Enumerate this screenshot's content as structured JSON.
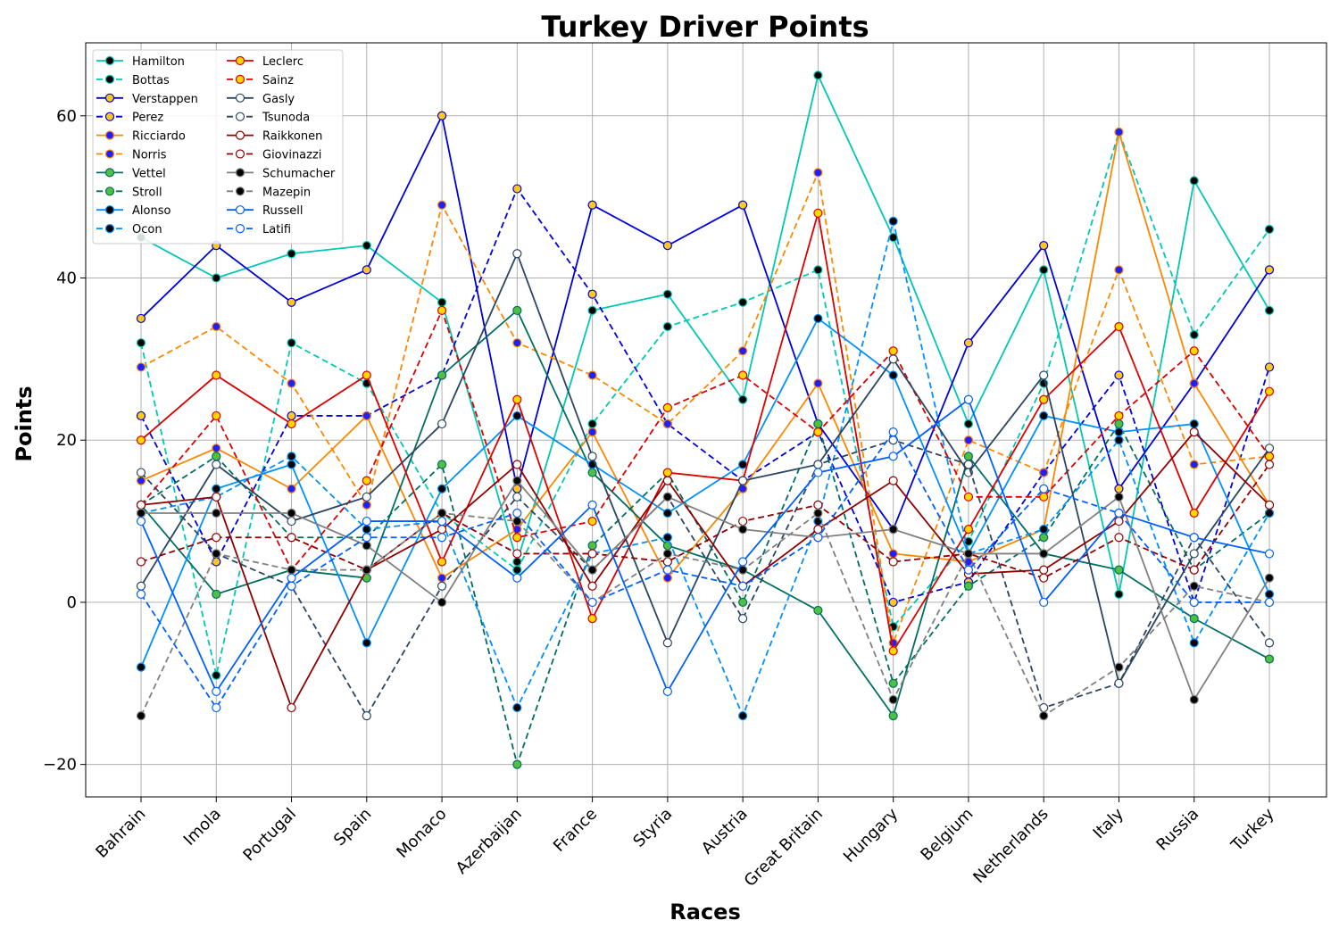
{
  "chart_data": {
    "type": "line",
    "title": "Turkey Driver Points",
    "xlabel": "Races",
    "ylabel": "Points",
    "ylim": [
      -24,
      69
    ],
    "yticks": [
      -20,
      0,
      20,
      40,
      60
    ],
    "ytick_labels": [
      "−20",
      "0",
      "20",
      "40",
      "60"
    ],
    "grid": true,
    "legend_position": "top-left",
    "categories": [
      "Bahrain",
      "Imola",
      "Portugal",
      "Spain",
      "Monaco",
      "Azerbaijan",
      "France",
      "Styria",
      "Austria",
      "Great Britain",
      "Hungary",
      "Belgium",
      "Netherlands",
      "Italy",
      "Russia",
      "Turkey"
    ],
    "series": [
      {
        "name": "Hamilton",
        "color": "#00c8b4",
        "dash": false,
        "marker_fill": "#000000",
        "values": [
          45,
          40,
          43,
          44,
          37,
          5,
          36,
          38,
          25,
          65,
          45,
          22,
          41,
          1,
          52,
          36
        ]
      },
      {
        "name": "Bottas",
        "color": "#00c8b4",
        "dash": true,
        "marker_fill": "#000000",
        "values": [
          32,
          -9,
          32,
          27,
          11,
          4,
          22,
          34,
          37,
          41,
          -3,
          7.5,
          27,
          58,
          33,
          46
        ]
      },
      {
        "name": "Verstappen",
        "color": "#0000dc",
        "dash": false,
        "marker_fill": "#ffc820",
        "values": [
          35,
          44,
          37,
          41,
          60,
          14,
          49,
          44,
          49,
          22,
          9,
          32,
          44,
          14,
          27,
          41
        ]
      },
      {
        "name": "Perez",
        "color": "#0000dc",
        "dash": true,
        "marker_fill": "#ffc820",
        "values": [
          23,
          5,
          23,
          23,
          28,
          51,
          38,
          22,
          15,
          21,
          0,
          2.5,
          16,
          28,
          0,
          29
        ]
      },
      {
        "name": "Ricciardo",
        "color": "#ff8700",
        "dash": false,
        "marker_fill": "#2020ff",
        "values": [
          15,
          19,
          14,
          23,
          3,
          9,
          21,
          3,
          14,
          27,
          6,
          5,
          9,
          58,
          27,
          12
        ]
      },
      {
        "name": "Norris",
        "color": "#ff8700",
        "dash": true,
        "marker_fill": "#2020ff",
        "values": [
          29,
          34,
          27,
          12,
          49,
          32,
          28,
          22,
          31,
          53,
          -5,
          20,
          16,
          41,
          17,
          18
        ]
      },
      {
        "name": "Vettel",
        "color": "#006f62",
        "dash": false,
        "marker_fill": "#50c040",
        "values": [
          12,
          1,
          4,
          3,
          28,
          36,
          16,
          7,
          4,
          -1,
          -14,
          18,
          6,
          4,
          -2,
          -7
        ]
      },
      {
        "name": "Stroll",
        "color": "#006f62",
        "dash": true,
        "marker_fill": "#50c040",
        "values": [
          12,
          18,
          8,
          8,
          17,
          -20,
          7,
          16,
          0,
          22,
          -10,
          2,
          8,
          22,
          4,
          11
        ]
      },
      {
        "name": "Alonso",
        "color": "#0090ff",
        "dash": false,
        "marker_fill": "#000000",
        "values": [
          -8,
          14,
          17,
          -5,
          14,
          23,
          17,
          11,
          17,
          35,
          28,
          6,
          23,
          21,
          22,
          1
        ]
      },
      {
        "name": "Ocon",
        "color": "#0090ff",
        "dash": true,
        "marker_fill": "#000000",
        "values": [
          11,
          13,
          18,
          9,
          10,
          -13,
          6,
          8,
          -14,
          10,
          47,
          6,
          9,
          20,
          -5,
          11
        ]
      },
      {
        "name": "Leclerc",
        "color": "#dc0000",
        "dash": false,
        "marker_fill": "#ffd700",
        "values": [
          20,
          28,
          22,
          28,
          5,
          25,
          -2,
          16,
          15,
          48,
          -6,
          9,
          25,
          34,
          11,
          26
        ]
      },
      {
        "name": "Sainz",
        "color": "#dc0000",
        "dash": true,
        "marker_fill": "#ffd700",
        "values": [
          12,
          23,
          4,
          15,
          36,
          8,
          10,
          24,
          28,
          21,
          31,
          13,
          13,
          23,
          31,
          18
        ]
      },
      {
        "name": "Gasly",
        "color": "#2b4562",
        "dash": false,
        "marker_fill": "#ffffff",
        "values": [
          2,
          17,
          10,
          13,
          22,
          43,
          18,
          -5,
          15,
          17,
          30,
          16,
          28,
          -10,
          6,
          19
        ]
      },
      {
        "name": "Tsunoda",
        "color": "#2b4562",
        "dash": true,
        "marker_fill": "#ffffff",
        "values": [
          16,
          6,
          2,
          -14,
          2,
          13,
          4,
          13,
          -2,
          17,
          20,
          17,
          -13,
          -10,
          8,
          -5
        ]
      },
      {
        "name": "Raikkonen",
        "color": "#900000",
        "dash": false,
        "marker_fill": "#ffffff",
        "values": [
          12,
          13,
          -13,
          4,
          9,
          17,
          2,
          15,
          2,
          9,
          15,
          3.5,
          4,
          10,
          21,
          12
        ]
      },
      {
        "name": "Giovinazzi",
        "color": "#900000",
        "dash": true,
        "marker_fill": "#ffffff",
        "values": [
          5,
          8,
          8,
          4,
          11,
          6,
          6,
          5,
          10,
          12,
          5,
          6,
          3,
          8,
          4,
          17
        ]
      },
      {
        "name": "Schumacher",
        "color": "#808080",
        "dash": false,
        "marker_fill": "#000000",
        "values": [
          11,
          11,
          11,
          7,
          0,
          15,
          4,
          13,
          9,
          8,
          9,
          6,
          6,
          13,
          -12,
          3
        ]
      },
      {
        "name": "Mazepin",
        "color": "#808080",
        "dash": true,
        "marker_fill": "#000000",
        "values": [
          -14,
          6,
          4,
          4,
          11,
          10,
          0,
          6,
          4,
          11,
          -12,
          6,
          -14,
          -8,
          2,
          0
        ]
      },
      {
        "name": "Russell",
        "color": "#0060ff",
        "dash": false,
        "marker_fill": "#ffffff",
        "values": [
          10,
          -11,
          3,
          10,
          10,
          3,
          12,
          -11,
          5,
          16,
          18,
          25,
          0,
          11,
          8,
          6
        ]
      },
      {
        "name": "Latifi",
        "color": "#0060ff",
        "dash": true,
        "marker_fill": "#ffffff",
        "values": [
          1,
          -13,
          2,
          8,
          8,
          11,
          0,
          4,
          2,
          8,
          21,
          4,
          14,
          11,
          0,
          0
        ]
      }
    ]
  }
}
